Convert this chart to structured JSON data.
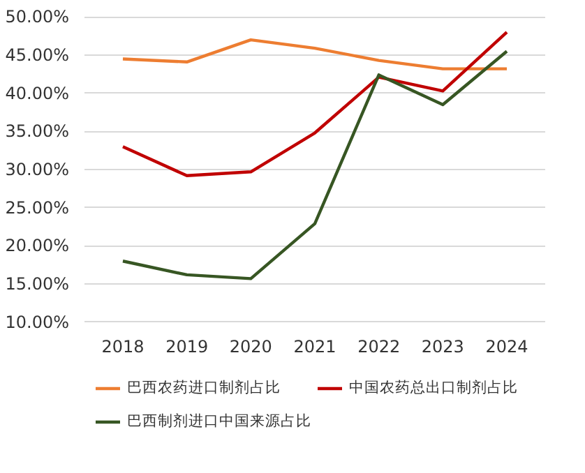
{
  "chart_data": {
    "type": "line",
    "categories": [
      "2018",
      "2019",
      "2020",
      "2021",
      "2022",
      "2023",
      "2024"
    ],
    "series": [
      {
        "name": "巴西农药进口制剂占比",
        "color": "#ed7d31",
        "values": [
          44.5,
          44.1,
          47.0,
          45.9,
          44.3,
          43.2,
          43.2
        ]
      },
      {
        "name": "中国农药总出口制剂占比",
        "color": "#c00000",
        "values": [
          33.0,
          29.2,
          29.7,
          34.8,
          42.1,
          40.3,
          48.0
        ]
      },
      {
        "name": "巴西制剂进口中国来源占比",
        "color": "#375623",
        "values": [
          18.0,
          16.2,
          15.7,
          22.9,
          42.4,
          38.5,
          45.5
        ]
      }
    ],
    "ylim": [
      10,
      50
    ],
    "yticks": [
      {
        "value": 10,
        "label": "10.00%"
      },
      {
        "value": 15,
        "label": "15.00%"
      },
      {
        "value": 20,
        "label": "20.00%"
      },
      {
        "value": 25,
        "label": "25.00%"
      },
      {
        "value": 30,
        "label": "30.00%"
      },
      {
        "value": 35,
        "label": "35.00%"
      },
      {
        "value": 40,
        "label": "40.00%"
      },
      {
        "value": 45,
        "label": "45.00%"
      },
      {
        "value": 50,
        "label": "50.00%"
      }
    ],
    "grid": "y",
    "legend": "bottom",
    "marker": "none",
    "line_style": "solid"
  }
}
